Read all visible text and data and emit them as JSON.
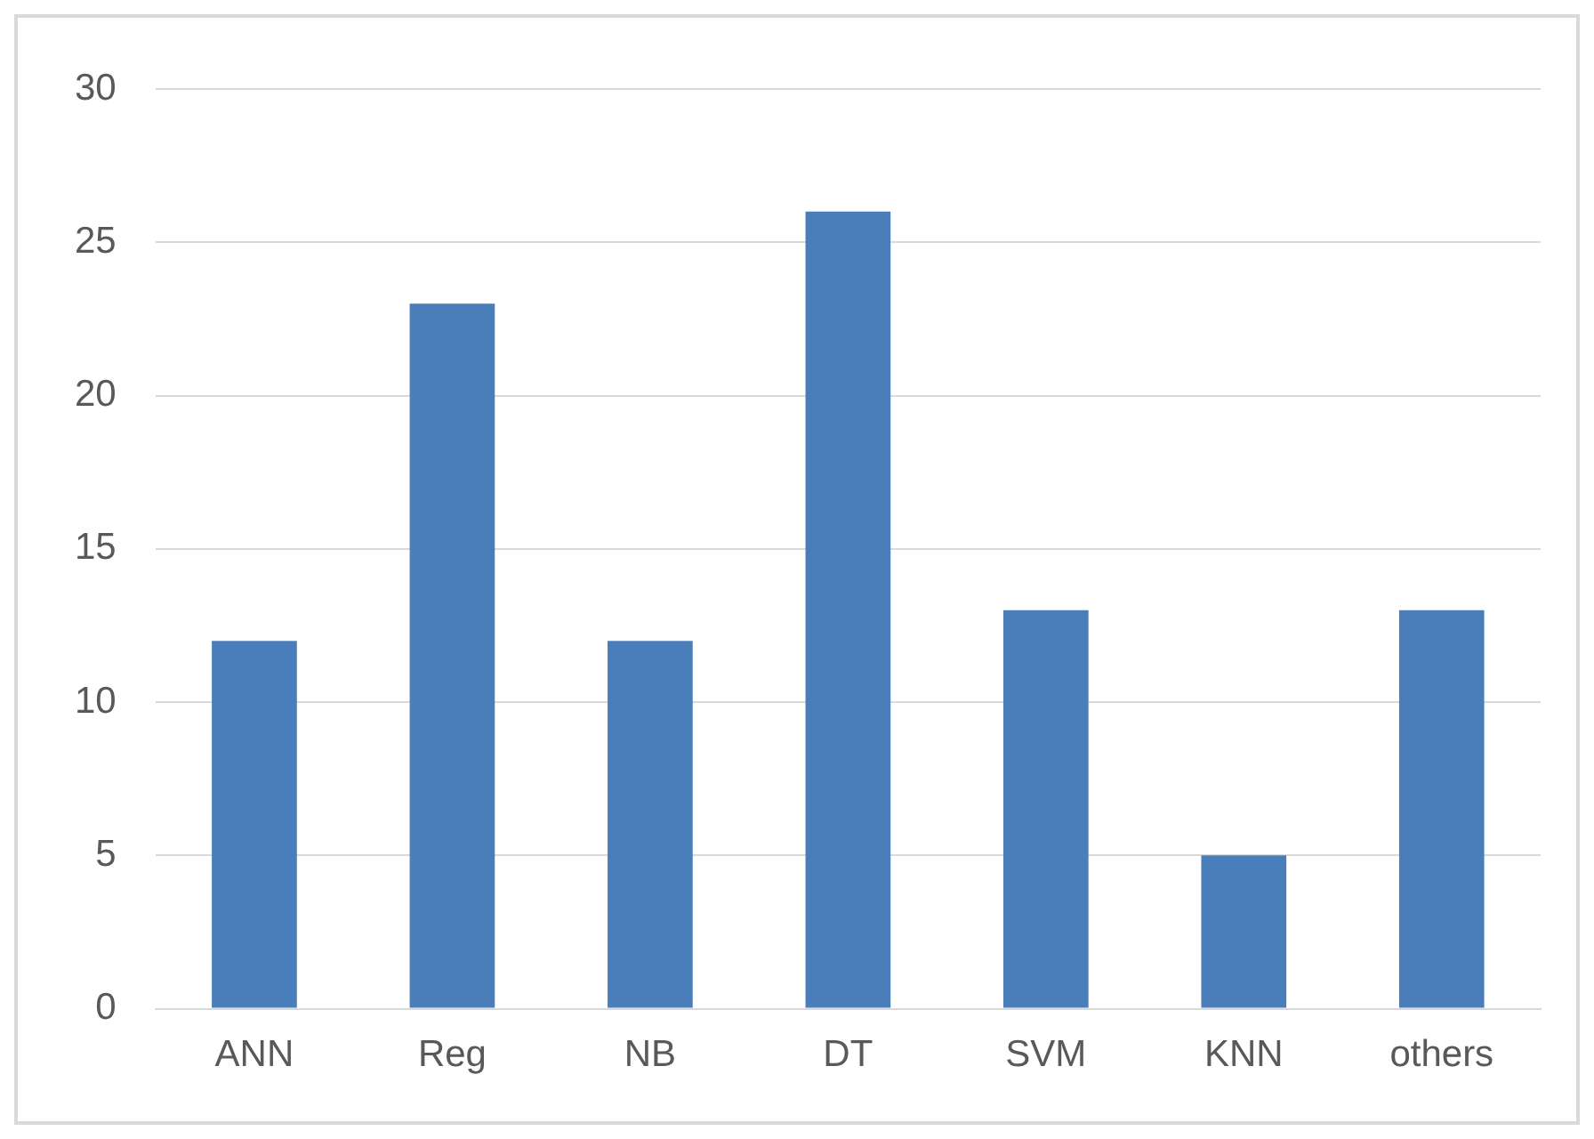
{
  "chart_data": {
    "type": "bar",
    "categories": [
      "ANN",
      "Reg",
      "NB",
      "DT",
      "SVM",
      "KNN",
      "others"
    ],
    "values": [
      12,
      23,
      12,
      26,
      13,
      5,
      13
    ],
    "color": "#4a7ebb",
    "ylim": [
      0,
      30
    ],
    "yticks": [
      0,
      5,
      10,
      15,
      20,
      25,
      30
    ],
    "grid": "y"
  }
}
